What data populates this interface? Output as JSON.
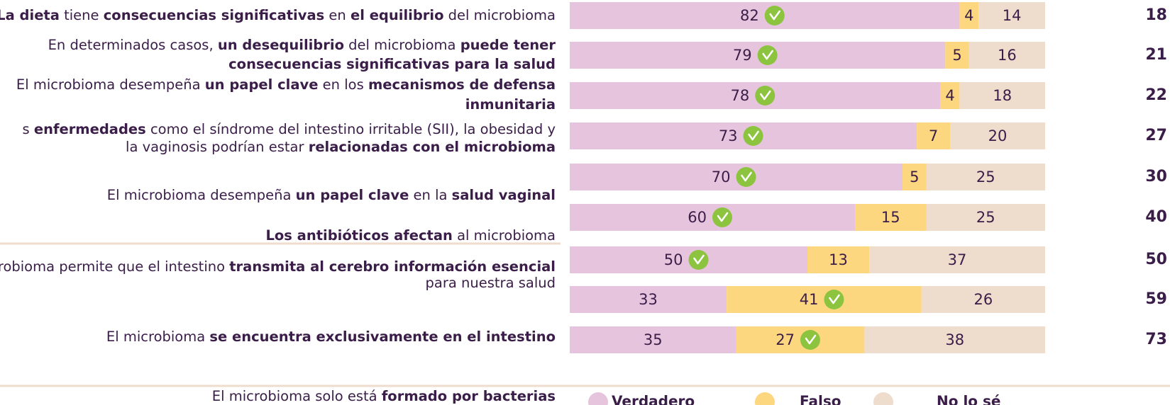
{
  "chart_data": {
    "type": "stacked-bar",
    "labels": [
      [
        [
          {
            "text": "La dieta",
            "bold": true
          },
          {
            "text": " tiene ",
            "bold": false
          },
          {
            "text": "consecuencias significativas",
            "bold": true
          },
          {
            "text": " en ",
            "bold": false
          },
          {
            "text": "el equilibrio",
            "bold": true
          },
          {
            "text": " del microbioma",
            "bold": false
          }
        ]
      ],
      [
        [
          {
            "text": "En determinados casos, ",
            "bold": false
          },
          {
            "text": "un desequilibrio",
            "bold": true
          },
          {
            "text": " del microbioma ",
            "bold": false
          },
          {
            "text": "puede tener",
            "bold": true
          }
        ],
        [
          {
            "text": "consecuencias significativas para la salud",
            "bold": true
          }
        ]
      ],
      [
        [
          {
            "text": "El microbioma desempeña ",
            "bold": false
          },
          {
            "text": "un papel clave",
            "bold": true
          },
          {
            "text": " en los ",
            "bold": false
          },
          {
            "text": "mecanismos de defensa",
            "bold": true
          }
        ],
        [
          {
            "text": "inmunitaria",
            "bold": true
          }
        ]
      ],
      [
        [
          {
            "text": "s ",
            "bold": false
          },
          {
            "text": "enfermedades",
            "bold": true
          },
          {
            "text": " como el síndrome del intestino irritable (SII), la obesidad y",
            "bold": false
          }
        ],
        [
          {
            "text": "la vaginosis podrían estar ",
            "bold": false
          },
          {
            "text": "relacionadas con el microbioma",
            "bold": true
          }
        ]
      ],
      [
        [
          {
            "text": "El microbioma desempeña ",
            "bold": false
          },
          {
            "text": "un papel clave",
            "bold": true
          },
          {
            "text": " en la ",
            "bold": false
          },
          {
            "text": "salud vaginal",
            "bold": true
          }
        ]
      ],
      [
        [
          {
            "text": "Los antibióticos afectan",
            "bold": true
          },
          {
            "text": " al microbioma",
            "bold": false
          }
        ]
      ],
      [
        [
          {
            "text": "robioma permite que el intestino ",
            "bold": false
          },
          {
            "text": "transmita al cerebro información esencial",
            "bold": true
          }
        ],
        [
          {
            "text": "para nuestra salud",
            "bold": false
          }
        ]
      ],
      [
        [
          {
            "text": "El microbioma ",
            "bold": false
          },
          {
            "text": "se encuentra exclusivamente en el intestino",
            "bold": true
          }
        ]
      ],
      [
        [
          {
            "text": "El microbioma solo está ",
            "bold": false
          },
          {
            "text": "formado por bacterias",
            "bold": true
          }
        ]
      ]
    ],
    "series": [
      {
        "name": "Verdadero",
        "color": "#e7c4dd",
        "values": [
          82,
          79,
          78,
          73,
          70,
          60,
          50,
          33,
          35
        ],
        "checked": [
          true,
          true,
          true,
          true,
          true,
          true,
          true,
          false,
          false
        ]
      },
      {
        "name": "Falso",
        "color": "#fdd77f",
        "values": [
          4,
          5,
          4,
          7,
          5,
          15,
          13,
          41,
          27
        ],
        "checked": [
          false,
          false,
          false,
          false,
          false,
          false,
          false,
          true,
          true
        ]
      },
      {
        "name": "No lo sé",
        "color": "#eedccd",
        "values": [
          14,
          16,
          18,
          20,
          25,
          25,
          37,
          26,
          38
        ],
        "checked": [
          false,
          false,
          false,
          false,
          false,
          false,
          false,
          false,
          false
        ]
      }
    ],
    "right_values": [
      18,
      21,
      22,
      27,
      30,
      40,
      50,
      59,
      73
    ]
  }
}
